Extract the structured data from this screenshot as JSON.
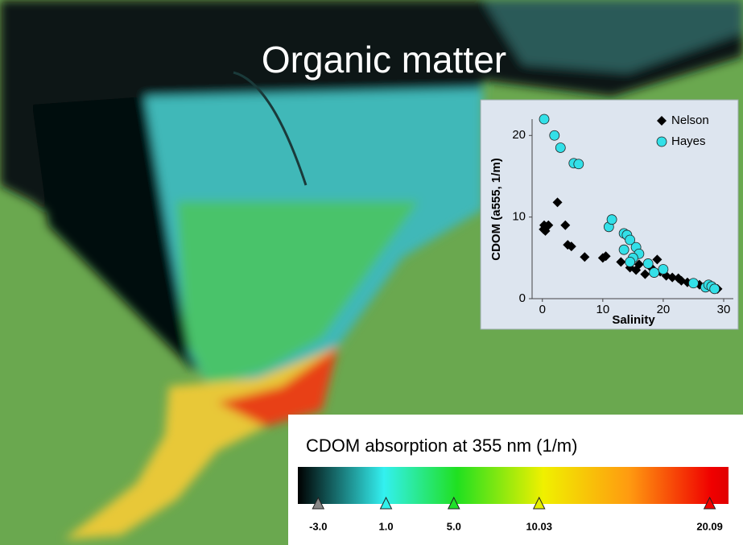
{
  "title": "Organic matter",
  "chart_data": {
    "type": "scatter",
    "xlabel": "Salinity",
    "ylabel": "CDOM (a555, 1/m)",
    "xlim": [
      -1.7,
      31.6
    ],
    "ylim": [
      0,
      22
    ],
    "xticks": [
      0,
      10,
      20,
      30
    ],
    "yticks": [
      0,
      10,
      20
    ],
    "legend": "upper right",
    "series": [
      {
        "name": "Nelson",
        "color": "#000000",
        "marker": "diamond",
        "x": [
          0.2,
          0.3,
          0.5,
          0.7,
          1,
          2.5,
          3.8,
          4.2,
          4.8,
          7,
          10,
          10.5,
          13,
          14.5,
          15.5,
          16,
          17,
          18,
          19,
          19.5,
          20.5,
          21.5,
          22.5,
          23,
          24,
          26,
          27,
          28,
          29
        ],
        "values": [
          8.5,
          9,
          8.3,
          8.8,
          9,
          11.8,
          9,
          6.6,
          6.4,
          5.1,
          5,
          5.2,
          4.5,
          3.8,
          3.5,
          4.2,
          3,
          3.8,
          4.8,
          3.3,
          2.8,
          2.6,
          2.5,
          2.2,
          2,
          1.7,
          1.5,
          1.4,
          1.2
        ]
      },
      {
        "name": "Hayes",
        "color": "#33e0e8",
        "marker": "circle",
        "x": [
          0.3,
          2,
          3,
          5.2,
          6,
          11,
          11.5,
          13.5,
          14,
          14.5,
          13.5,
          15.5,
          16,
          15,
          14.5,
          17.5,
          18.5,
          20,
          25,
          27,
          27.5,
          28,
          28.5
        ],
        "values": [
          22,
          20,
          18.5,
          16.6,
          16.5,
          8.8,
          9.7,
          8,
          7.8,
          7.2,
          6,
          6.3,
          5.5,
          5,
          4.5,
          4.3,
          3.2,
          3.6,
          1.9,
          1.4,
          1.7,
          1.5,
          1.2
        ]
      }
    ]
  },
  "colorbar": {
    "label": "CDOM absorption at 355 nm (1/m)",
    "lim": [
      -4.2,
      21.2
    ],
    "ticks": [
      {
        "value": -3,
        "label": "-3.0"
      },
      {
        "value": 1,
        "label": "1.0"
      },
      {
        "value": 5,
        "label": "5.0"
      },
      10.03,
      20.09
    ]
  }
}
